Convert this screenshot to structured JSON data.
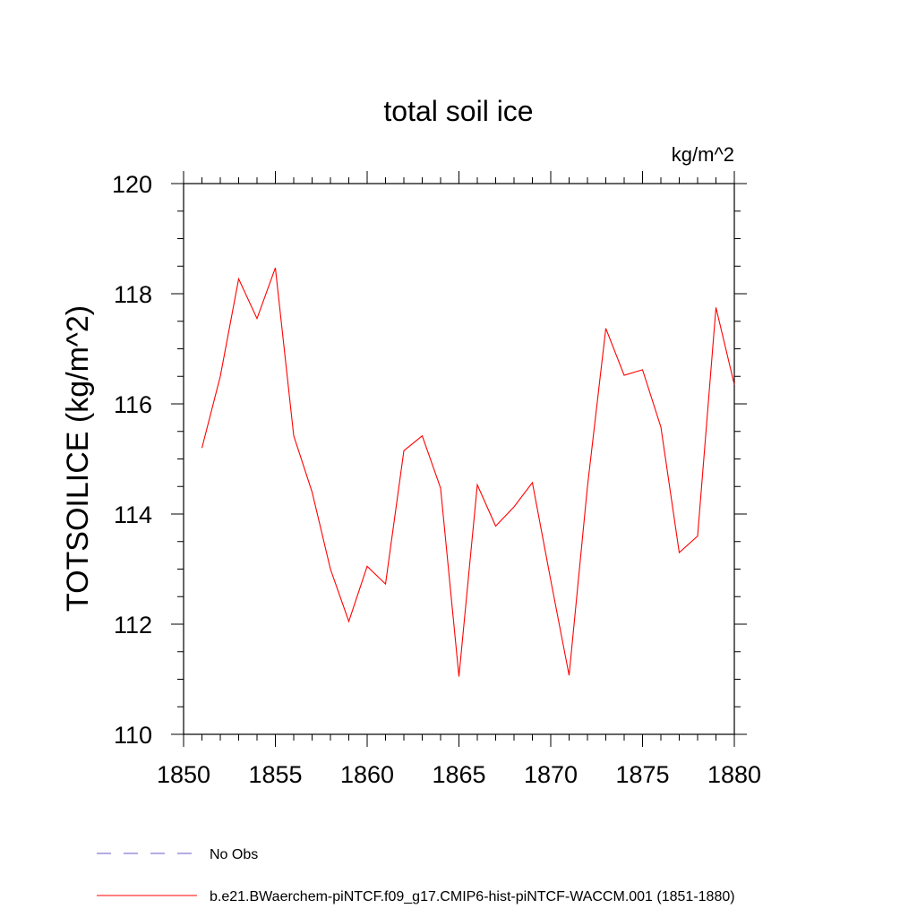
{
  "chart_data": {
    "type": "line",
    "title": "total soil ice",
    "units_label": "kg/m^2",
    "ylabel": "TOTSOILICE  (kg/m^2)",
    "xlabel": "",
    "xlim": [
      1850,
      1880
    ],
    "ylim": [
      110,
      120
    ],
    "x_ticks": [
      1850,
      1855,
      1860,
      1865,
      1870,
      1875,
      1880
    ],
    "y_ticks": [
      110,
      112,
      114,
      116,
      118,
      120
    ],
    "x_minor_step": 1,
    "y_minor_step": 0.5,
    "grid": false,
    "legend_position": "bottom-left, below plot",
    "series": [
      {
        "name": "b.e21.BWaerchem-piNTCF.f09_g17.CMIP6-hist-piNTCF-WACCM.001 (1851-1880)",
        "color": "#ff0000",
        "style": "solid",
        "x": [
          1851,
          1852,
          1853,
          1854,
          1855,
          1856,
          1857,
          1858,
          1859,
          1860,
          1861,
          1862,
          1863,
          1864,
          1865,
          1866,
          1867,
          1868,
          1869,
          1870,
          1871,
          1872,
          1873,
          1874,
          1875,
          1876,
          1877,
          1878,
          1879,
          1880
        ],
        "values": [
          115.2,
          116.5,
          118.27,
          117.55,
          118.47,
          115.42,
          114.4,
          113.0,
          112.05,
          113.05,
          112.73,
          115.15,
          115.42,
          114.47,
          111.05,
          114.53,
          113.78,
          114.13,
          114.57,
          112.8,
          111.07,
          114.5,
          117.37,
          116.52,
          116.62,
          115.58,
          113.3,
          113.6,
          117.75,
          116.35
        ]
      }
    ],
    "legend": [
      {
        "label": "No Obs",
        "color": "#6a5acd",
        "style": "dashed"
      },
      {
        "label": "b.e21.BWaerchem-piNTCF.f09_g17.CMIP6-hist-piNTCF-WACCM.001 (1851-1880)",
        "color": "#ff0000",
        "style": "solid"
      }
    ]
  }
}
